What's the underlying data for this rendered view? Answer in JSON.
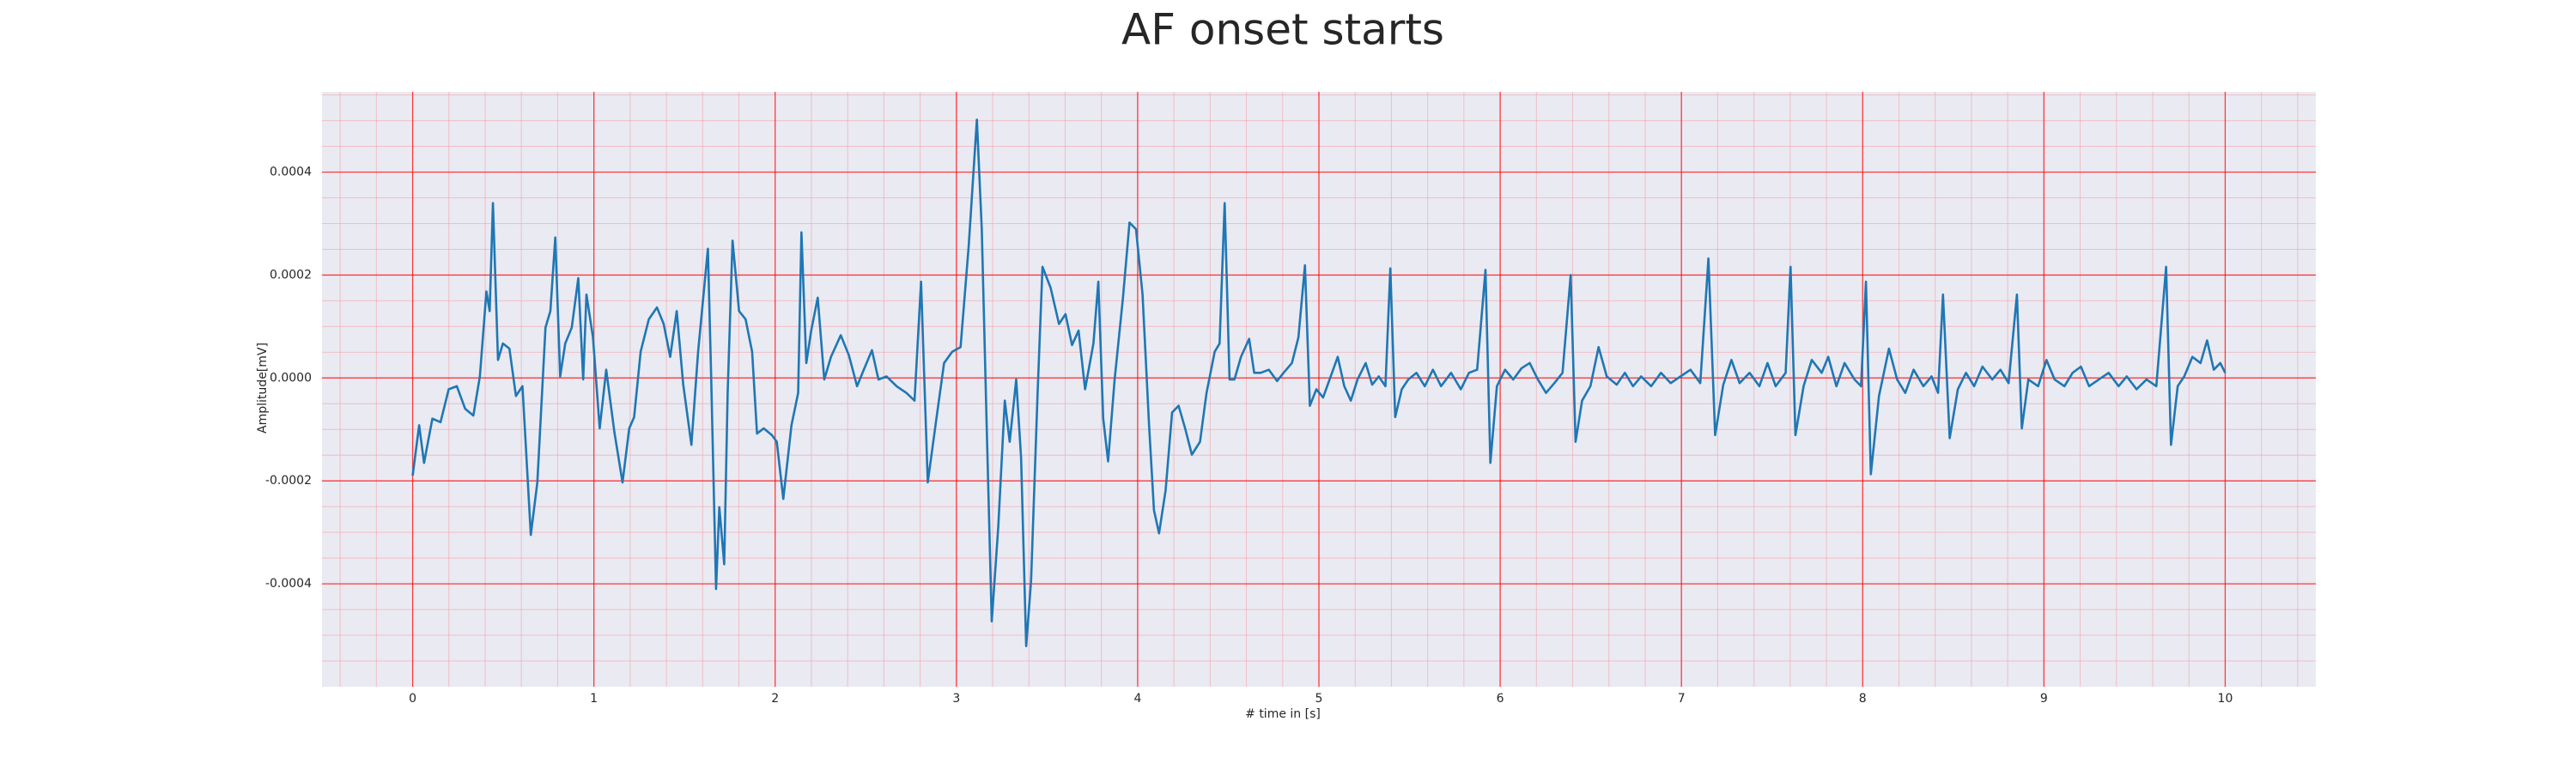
{
  "chart_data": {
    "type": "line",
    "title": "AF onset starts",
    "x_label": "# time in [s]",
    "y_label": "Amplitude[mV]",
    "color": "#1f77b4",
    "grid": true,
    "minor_grid": true,
    "xlim": [
      -0.5,
      10.5
    ],
    "ylim": [
      -0.0006,
      0.000556
    ],
    "xticks": [
      0,
      1,
      2,
      3,
      4,
      5,
      6,
      7,
      8,
      9,
      10
    ],
    "yticks": [
      {
        "value": -0.0004,
        "label": "-0.0004"
      },
      {
        "value": -0.0002,
        "label": "-0.0002"
      },
      {
        "value": 0,
        "label": "0.0000"
      },
      {
        "value": 0.0002,
        "label": "0.0002"
      },
      {
        "value": 0.0004,
        "label": "0.0004"
      }
    ],
    "x": [
      0,
      0.036,
      0.063,
      0.109,
      0.154,
      0.199,
      0.244,
      0.29,
      0.335,
      0.371,
      0.407,
      0.425,
      0.443,
      0.471,
      0.498,
      0.534,
      0.57,
      0.606,
      0.652,
      0.688,
      0.733,
      0.76,
      0.787,
      0.814,
      0.842,
      0.878,
      0.914,
      0.941,
      0.959,
      0.995,
      1.032,
      1.068,
      1.113,
      1.158,
      1.195,
      1.222,
      1.258,
      1.303,
      1.348,
      1.385,
      1.421,
      1.457,
      1.493,
      1.538,
      1.575,
      1.629,
      1.647,
      1.674,
      1.692,
      1.719,
      1.738,
      1.765,
      1.801,
      1.837,
      1.873,
      1.9,
      1.937,
      1.982,
      2.009,
      2.045,
      2.09,
      2.127,
      2.145,
      2.172,
      2.199,
      2.235,
      2.271,
      2.308,
      2.362,
      2.407,
      2.452,
      2.489,
      2.534,
      2.57,
      2.615,
      2.67,
      2.724,
      2.769,
      2.805,
      2.842,
      2.887,
      2.932,
      2.977,
      3.023,
      3.068,
      3.113,
      3.14,
      3.167,
      3.195,
      3.231,
      3.267,
      3.294,
      3.33,
      3.357,
      3.385,
      3.412,
      3.448,
      3.475,
      3.52,
      3.566,
      3.602,
      3.638,
      3.674,
      3.71,
      3.756,
      3.783,
      3.81,
      3.837,
      3.873,
      3.919,
      3.955,
      3.991,
      4.027,
      4.063,
      4.09,
      4.118,
      4.154,
      4.19,
      4.226,
      4.262,
      4.299,
      4.344,
      4.38,
      4.425,
      4.452,
      4.48,
      4.507,
      4.534,
      4.57,
      4.615,
      4.643,
      4.679,
      4.724,
      4.769,
      4.805,
      4.851,
      4.887,
      4.923,
      4.95,
      4.986,
      5.023,
      5.059,
      5.104,
      5.14,
      5.176,
      5.213,
      5.258,
      5.294,
      5.33,
      5.367,
      5.394,
      5.421,
      5.457,
      5.493,
      5.538,
      5.584,
      5.629,
      5.674,
      5.729,
      5.783,
      5.828,
      5.873,
      5.919,
      5.946,
      5.982,
      6.027,
      6.072,
      6.118,
      6.163,
      6.208,
      6.253,
      6.299,
      6.344,
      6.389,
      6.416,
      6.452,
      6.498,
      6.543,
      6.588,
      6.643,
      6.688,
      6.733,
      6.778,
      6.833,
      6.887,
      6.941,
      6.995,
      7.05,
      7.104,
      7.149,
      7.186,
      7.231,
      7.276,
      7.321,
      7.376,
      7.43,
      7.475,
      7.52,
      7.575,
      7.602,
      7.629,
      7.674,
      7.719,
      7.774,
      7.81,
      7.855,
      7.9,
      7.955,
      7.991,
      8.018,
      8.045,
      8.09,
      8.145,
      8.19,
      8.235,
      8.281,
      8.335,
      8.38,
      8.416,
      8.443,
      8.48,
      8.525,
      8.57,
      8.615,
      8.661,
      8.715,
      8.76,
      8.805,
      8.851,
      8.878,
      8.914,
      8.968,
      9.014,
      9.059,
      9.113,
      9.158,
      9.204,
      9.249,
      9.303,
      9.357,
      9.412,
      9.457,
      9.511,
      9.566,
      9.62,
      9.674,
      9.701,
      9.738,
      9.774,
      9.819,
      9.864,
      9.9,
      9.937,
      9.973,
      10
    ],
    "values": [
      -0.00019,
      -9.2e-05,
      -0.000165,
      -7.9e-05,
      -8.6e-05,
      -2.2e-05,
      -1.6e-05,
      -6e-05,
      -7.3e-05,
      3e-06,
      0.000168,
      0.00013,
      0.00034,
      3.5e-05,
      6.7e-05,
      5.7e-05,
      -3.5e-05,
      -1.6e-05,
      -0.000305,
      -0.000203,
      9.8e-05,
      0.00013,
      0.000273,
      3e-06,
      6.7e-05,
      9.8e-05,
      0.000194,
      -3e-06,
      0.000162,
      7.9e-05,
      -9.8e-05,
      1.6e-05,
      -0.000105,
      -0.000203,
      -9.8e-05,
      -7.6e-05,
      5.1e-05,
      0.000114,
      0.000137,
      0.000105,
      4.1e-05,
      0.00013,
      -1.3e-05,
      -0.00013,
      5.1e-05,
      0.000251,
      3e-06,
      -0.00041,
      -0.000251,
      -0.000362,
      -2.9e-05,
      0.000267,
      0.00013,
      0.000114,
      5.1e-05,
      -0.000108,
      -9.8e-05,
      -0.000111,
      -0.000124,
      -0.000235,
      -9.2e-05,
      -2.9e-05,
      0.000283,
      2.9e-05,
      9.2e-05,
      0.000156,
      -3e-06,
      4.1e-05,
      8.3e-05,
      4.4e-05,
      -1.6e-05,
      1.6e-05,
      5.4e-05,
      -3e-06,
      3e-06,
      -1.6e-05,
      -2.9e-05,
      -4.4e-05,
      0.000187,
      -0.000203,
      -8.6e-05,
      2.9e-05,
      5.1e-05,
      6e-05,
      0.000257,
      0.000502,
      0.000289,
      -9.2e-05,
      -0.000473,
      -0.000289,
      -4.4e-05,
      -0.000124,
      -3e-06,
      -0.000156,
      -0.000521,
      -0.000394,
      -2.9e-05,
      0.000216,
      0.000175,
      0.000105,
      0.000124,
      6.4e-05,
      9.2e-05,
      -2.2e-05,
      6.7e-05,
      0.000187,
      -7.9e-05,
      -0.000162,
      -3e-06,
      0.000156,
      0.000302,
      0.000289,
      0.000162,
      -9.2e-05,
      -0.000257,
      -0.000302,
      -0.000219,
      -6.7e-05,
      -5.4e-05,
      -9.8e-05,
      -0.000149,
      -0.000124,
      -2.9e-05,
      5.1e-05,
      6.7e-05,
      0.00034,
      -3e-06,
      -3e-06,
      4.1e-05,
      7.6e-05,
      1e-05,
      1e-05,
      1.6e-05,
      -6e-06,
      1e-05,
      2.9e-05,
      7.9e-05,
      0.000219,
      -5.4e-05,
      -2.2e-05,
      -3.8e-05,
      -3e-06,
      4.1e-05,
      -1.6e-05,
      -4.4e-05,
      -3e-06,
      2.9e-05,
      -1.3e-05,
      3e-06,
      -1.6e-05,
      0.000213,
      -7.6e-05,
      -2.2e-05,
      -3e-06,
      1e-05,
      -1.6e-05,
      1.6e-05,
      -1.6e-05,
      1e-05,
      -2.2e-05,
      1e-05,
      1.6e-05,
      0.00021,
      -0.000165,
      -1.6e-05,
      1.6e-05,
      -3e-06,
      1.9e-05,
      2.9e-05,
      -3e-06,
      -2.9e-05,
      -1e-05,
      1e-05,
      0.0002,
      -0.000124,
      -4.4e-05,
      -1.6e-05,
      6e-05,
      3e-06,
      -1.3e-05,
      1e-05,
      -1.6e-05,
      3e-06,
      -1.6e-05,
      1e-05,
      -1e-05,
      3e-06,
      1.6e-05,
      -1e-05,
      0.000232,
      -0.000111,
      -1.3e-05,
      3.5e-05,
      -1e-05,
      1e-05,
      -1.6e-05,
      2.9e-05,
      -1.6e-05,
      1e-05,
      0.000216,
      -0.000111,
      -1.6e-05,
      3.5e-05,
      1e-05,
      4.1e-05,
      -1.6e-05,
      2.9e-05,
      -3e-06,
      -1.6e-05,
      0.000187,
      -0.000187,
      -3.5e-05,
      5.7e-05,
      -3e-06,
      -2.9e-05,
      1.6e-05,
      -1.6e-05,
      3e-06,
      -2.9e-05,
      0.000162,
      -0.000117,
      -2.2e-05,
      1e-05,
      -1.6e-05,
      2.2e-05,
      -3e-06,
      1.6e-05,
      -1e-05,
      0.000162,
      -9.8e-05,
      -3e-06,
      -1.6e-05,
      3.5e-05,
      -3e-06,
      -1.6e-05,
      1e-05,
      2.2e-05,
      -1.6e-05,
      -3e-06,
      1e-05,
      -1.6e-05,
      3e-06,
      -2.2e-05,
      -3e-06,
      -1.6e-05,
      0.000216,
      -0.00013,
      -1.6e-05,
      3e-06,
      4.1e-05,
      2.9e-05,
      7.3e-05,
      1.6e-05,
      2.9e-05,
      1e-05
    ]
  }
}
